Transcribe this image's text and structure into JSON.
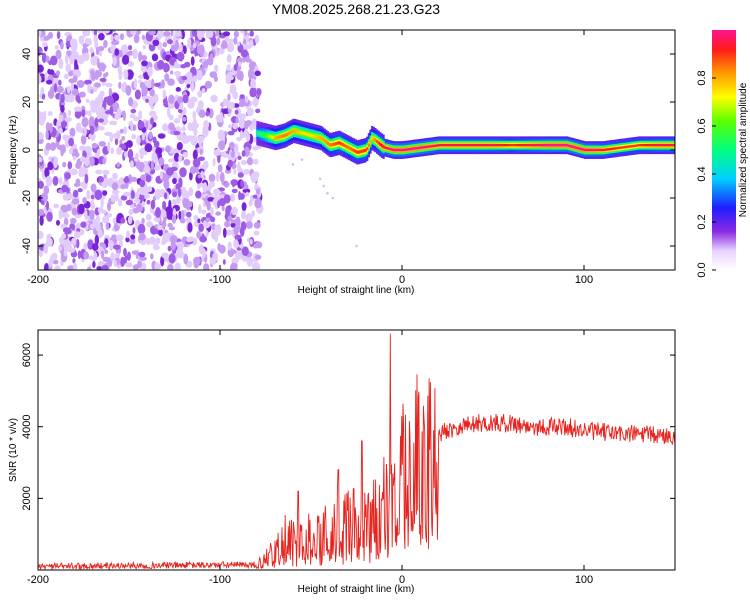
{
  "title": "YM08.2025.268.21.23.G23",
  "colors": {
    "snr_line": "#e8231e",
    "frame": "#000000",
    "background": "#ffffff"
  },
  "chart_data": [
    {
      "type": "heatmap",
      "name": "spectrogram",
      "xlabel": "Height of straight line (km)",
      "ylabel": "Frequency (Hz)",
      "xlim": [
        -200,
        150
      ],
      "ylim": [
        -50,
        50
      ],
      "xticks": [
        -200,
        -100,
        0,
        100
      ],
      "xtick_labels": [
        "-200",
        "-100",
        "0",
        "100"
      ],
      "yticks": [
        -40,
        -20,
        0,
        20,
        40
      ],
      "ytick_labels": [
        "-40",
        "-20",
        "0",
        "20",
        "40"
      ],
      "noise_region_x": [
        -200,
        -78
      ],
      "ridge": {
        "x": [
          -80,
          -75,
          -70,
          -65,
          -60,
          -55,
          -50,
          -45,
          -40,
          -35,
          -30,
          -25,
          -20,
          -17,
          -15,
          -12,
          -10,
          -5,
          0,
          10,
          20,
          30,
          40,
          50,
          60,
          70,
          80,
          90,
          100,
          110,
          120,
          130,
          140,
          150
        ],
        "frequency_hz": [
          7,
          6,
          5,
          6,
          8,
          7,
          6,
          5,
          2,
          3,
          1,
          -1,
          0,
          5,
          4,
          2,
          1,
          0,
          0,
          1,
          2,
          2,
          2,
          2,
          2,
          2,
          2,
          2,
          0,
          0,
          1,
          2,
          2,
          2
        ],
        "peak_amplitude": [
          0.45,
          0.55,
          0.75,
          0.8,
          0.75,
          0.7,
          0.7,
          0.75,
          0.8,
          0.85,
          0.8,
          0.85,
          0.85,
          0.7,
          0.8,
          0.9,
          0.9,
          0.95,
          0.95,
          0.95,
          0.9,
          0.9,
          0.9,
          0.9,
          0.85,
          0.9,
          0.95,
          0.95,
          0.95,
          0.9,
          0.85,
          0.85,
          0.9,
          0.9
        ]
      }
    },
    {
      "type": "colorbar",
      "name": "colorbar",
      "label": "Normalized spectral amplitude",
      "range": [
        0,
        1
      ],
      "ticks": [
        0.0,
        0.2,
        0.4,
        0.6,
        0.8
      ],
      "tick_labels": [
        "0.0",
        "0.2",
        "0.4",
        "0.6",
        "0.8"
      ]
    },
    {
      "type": "line",
      "name": "snr",
      "xlabel": "Height of straight line (km)",
      "ylabel": "SNR (10 * v/v)",
      "xlim": [
        -200,
        150
      ],
      "ylim": [
        0,
        6700
      ],
      "xticks": [
        -200,
        -100,
        0,
        100
      ],
      "xtick_labels": [
        "-200",
        "-100",
        "0",
        "100"
      ],
      "yticks": [
        2000,
        4000,
        6000
      ],
      "ytick_labels": [
        "2000",
        "4000",
        "6000"
      ],
      "envelope": {
        "x": [
          -200,
          -80,
          -75,
          -70,
          -65,
          -60,
          -55,
          -50,
          -45,
          -40,
          -35,
          -30,
          -25,
          -20,
          -15,
          -10,
          -8,
          -7,
          -5,
          -2,
          0,
          5,
          10,
          15,
          20,
          30,
          40,
          50,
          60,
          70,
          80,
          90,
          100,
          110,
          120,
          130,
          140,
          150
        ],
        "snr": [
          100,
          150,
          300,
          600,
          900,
          800,
          1000,
          1100,
          1000,
          1200,
          1300,
          1300,
          1300,
          1400,
          1500,
          1800,
          2000,
          2100,
          2300,
          2500,
          2700,
          3000,
          3300,
          3600,
          3800,
          4000,
          4100,
          4100,
          4100,
          4000,
          4000,
          4000,
          3900,
          3850,
          3800,
          3800,
          3750,
          3750
        ],
        "spikes": [
          {
            "x": -6.5,
            "snr": 6600
          },
          {
            "x": -22,
            "snr": 3600
          },
          {
            "x": -57,
            "snr": 2200
          },
          {
            "x": -35,
            "snr": 2800
          }
        ]
      }
    }
  ]
}
